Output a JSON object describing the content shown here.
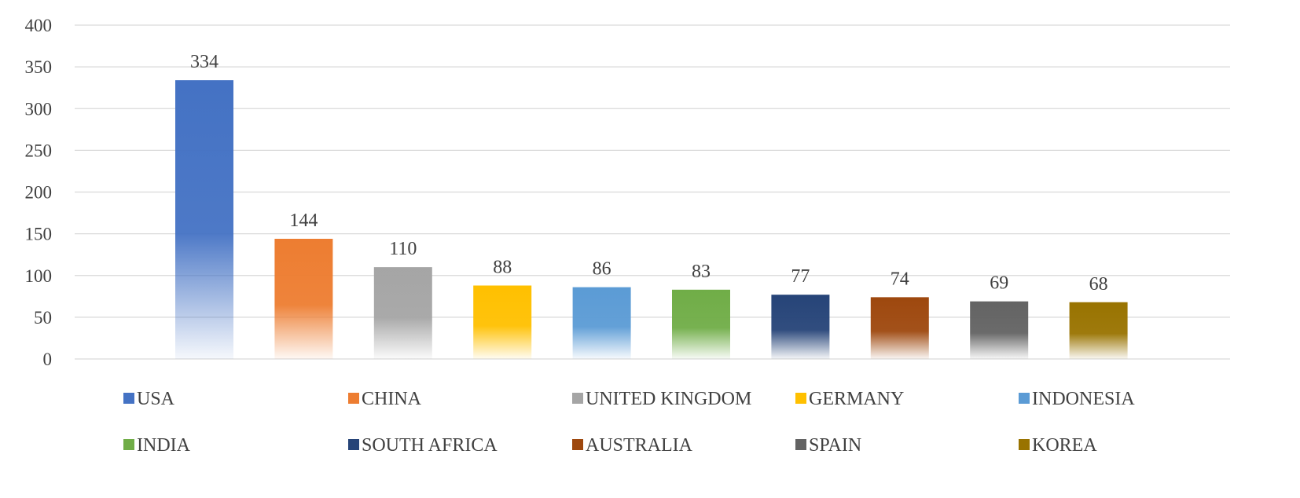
{
  "chart_data": {
    "type": "bar",
    "title": "",
    "xlabel": "",
    "ylabel": "",
    "categories": [
      "USA",
      "CHINA",
      "UNITED KINGDOM",
      "GERMANY",
      "INDONESIA",
      "INDIA",
      "SOUTH AFRICA",
      "AUSTRALIA",
      "SPAIN",
      "KOREA"
    ],
    "values": [
      334,
      144,
      110,
      88,
      86,
      83,
      77,
      74,
      69,
      68
    ],
    "colors": [
      "#4472c4",
      "#ed7d31",
      "#a5a5a5",
      "#ffc000",
      "#5b9bd5",
      "#70ad47",
      "#264478",
      "#9e480e",
      "#636363",
      "#997300"
    ],
    "ylim": [
      0,
      400
    ],
    "yticks": [
      0,
      50,
      100,
      150,
      200,
      250,
      300,
      350,
      400
    ],
    "grid": true,
    "legend_position": "bottom",
    "data_labels": true
  }
}
